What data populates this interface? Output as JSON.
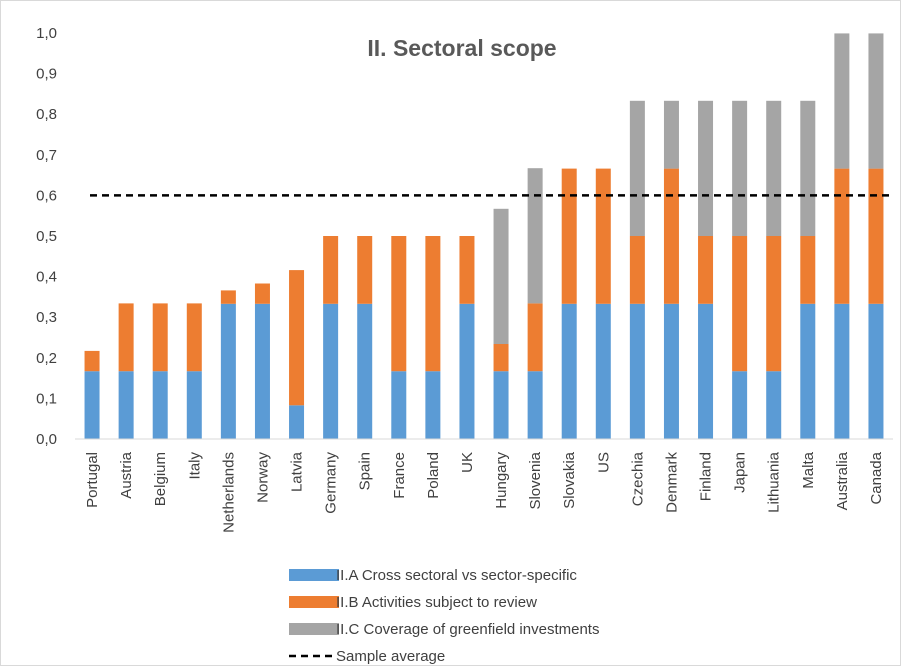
{
  "chart_data": {
    "type": "bar",
    "stacked": true,
    "title": "II. Sectoral scope",
    "xlabel": "",
    "ylabel": "",
    "ylim": [
      0,
      1.0
    ],
    "yticks": [
      "0,0",
      "0,1",
      "0,2",
      "0,3",
      "0,4",
      "0,5",
      "0,6",
      "0,7",
      "0,8",
      "0,9",
      "1,0"
    ],
    "grid": false,
    "legend_position": "bottom",
    "categories": [
      "Portugal",
      "Austria",
      "Belgium",
      "Italy",
      "Netherlands",
      "Norway",
      "Latvia",
      "Germany",
      "Spain",
      "France",
      "Poland",
      "UK",
      "Hungary",
      "Slovenia",
      "Slovakia",
      "US",
      "Czechia",
      "Denmark",
      "Finland",
      "Japan",
      "Lithuania",
      "Malta",
      "Australia",
      "Canada"
    ],
    "series": [
      {
        "name": "II.A Cross sectoral vs sector-specific",
        "color": "#5b9bd5",
        "values": [
          0.167,
          0.167,
          0.167,
          0.167,
          0.333,
          0.333,
          0.083,
          0.333,
          0.333,
          0.167,
          0.167,
          0.333,
          0.167,
          0.167,
          0.333,
          0.333,
          0.333,
          0.333,
          0.333,
          0.167,
          0.167,
          0.333,
          0.333,
          0.333
        ]
      },
      {
        "name": "II.B Activities subject to review",
        "color": "#ed7d31",
        "values": [
          0.05,
          0.167,
          0.167,
          0.167,
          0.033,
          0.05,
          0.333,
          0.167,
          0.167,
          0.333,
          0.333,
          0.167,
          0.067,
          0.167,
          0.333,
          0.333,
          0.167,
          0.333,
          0.167,
          0.333,
          0.333,
          0.167,
          0.333,
          0.333
        ]
      },
      {
        "name": "II.C Coverage of greenfield investments",
        "color": "#a5a5a5",
        "values": [
          0,
          0,
          0,
          0,
          0,
          0,
          0,
          0,
          0,
          0,
          0,
          0,
          0.333,
          0.333,
          0,
          0,
          0.333,
          0.167,
          0.333,
          0.333,
          0.333,
          0.333,
          0.333,
          0.333
        ]
      }
    ],
    "reference_line": {
      "name": "Sample average",
      "value": 0.6,
      "style": "dashed",
      "color": "#000000"
    }
  }
}
